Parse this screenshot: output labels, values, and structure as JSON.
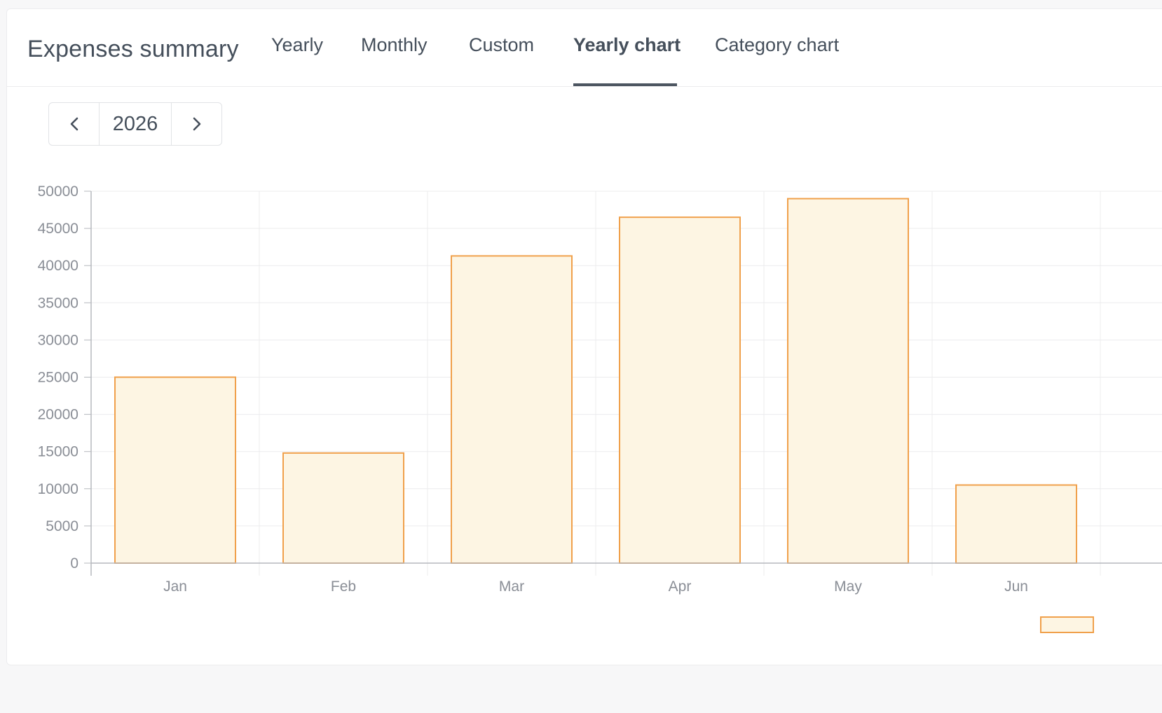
{
  "header": {
    "title": "Expenses summary",
    "tabs": [
      {
        "label": "Yearly",
        "active": false
      },
      {
        "label": "Monthly",
        "active": false
      },
      {
        "label": "Custom",
        "active": false
      },
      {
        "label": "Yearly chart",
        "active": true
      },
      {
        "label": "Category chart",
        "active": false
      }
    ]
  },
  "year_nav": {
    "prev_icon": "chevron-left-icon",
    "year": "2026",
    "next_icon": "chevron-right-icon"
  },
  "colors": {
    "bar_fill": "#fdf5e3",
    "bar_stroke": "#f0a04b",
    "grid": "#ececee",
    "axis": "#b5b8bd",
    "tick_text": "#8a8e96"
  },
  "chart_data": {
    "type": "bar",
    "categories": [
      "Jan",
      "Feb",
      "Mar",
      "Apr",
      "May",
      "Jun"
    ],
    "values": [
      25000,
      14800,
      41300,
      46500,
      49000,
      10500
    ],
    "yticks": [
      "0",
      "5000",
      "10000",
      "15000",
      "20000",
      "25000",
      "30000",
      "35000",
      "40000",
      "45000",
      "50000"
    ],
    "ylim": [
      0,
      50000
    ],
    "grid": true,
    "legend": "bottom-right"
  }
}
